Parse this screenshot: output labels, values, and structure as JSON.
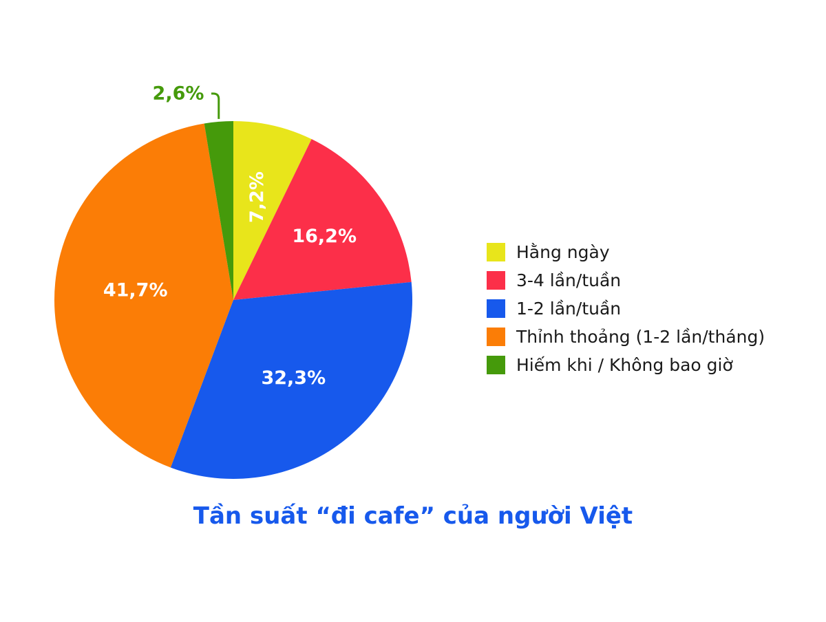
{
  "chart_data": {
    "type": "pie",
    "title": "Tần suất “đi cafe” của người Việt",
    "start": "12 o'clock, clockwise",
    "slices": [
      {
        "label": "Hằng ngày",
        "value": 7.2,
        "display": "7,2%",
        "color": "#e8e51b",
        "label_color": "#ffffff",
        "label_rotated": true
      },
      {
        "label": "3-4 lần/tuần",
        "value": 16.2,
        "display": "16,2%",
        "color": "#fc2f49",
        "label_color": "#ffffff"
      },
      {
        "label": "1-2 lần/tuần",
        "value": 32.3,
        "display": "32,3%",
        "color": "#1759ec",
        "label_color": "#ffffff"
      },
      {
        "label": "Thỉnh thoảng (1-2 lần/tháng)",
        "value": 41.7,
        "display": "41,7%",
        "color": "#fb7d06",
        "label_color": "#ffffff"
      },
      {
        "label": "Hiếm khi / Không bao giờ",
        "value": 2.6,
        "display": "2,6%",
        "color": "#459a0b",
        "label_color": "#459a0b",
        "label_outside": true
      }
    ],
    "legend_placement": "right"
  }
}
